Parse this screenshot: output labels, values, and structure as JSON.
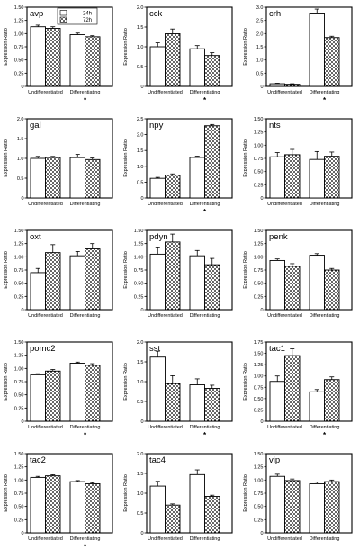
{
  "legend": {
    "series": [
      "24h",
      "72h"
    ]
  },
  "chart_data": [
    {
      "type": "bar",
      "title": "avp",
      "ylabel": "Expression Ratio",
      "categories": [
        "Undifferentiated",
        "Differentiating"
      ],
      "ylim": [
        0,
        1.5
      ],
      "yticks": [
        "0",
        "0.25",
        "0.50",
        "0.75",
        "1.00",
        "1.25",
        "1.50"
      ],
      "series": [
        {
          "name": "24h",
          "values": [
            1.13,
            0.98
          ],
          "errors": [
            0.03,
            0.03
          ]
        },
        {
          "name": "72h",
          "values": [
            1.1,
            0.94
          ],
          "errors": [
            0.03,
            0.02
          ]
        }
      ],
      "significant": "Differentiating"
    },
    {
      "type": "bar",
      "title": "cck",
      "ylabel": "Expression Ratio",
      "categories": [
        "Undifferentiated",
        "Differentiating"
      ],
      "ylim": [
        0,
        2.0
      ],
      "yticks": [
        "0",
        "0.5",
        "1.0",
        "1.5",
        "2.0"
      ],
      "series": [
        {
          "name": "24h",
          "values": [
            1.0,
            0.95
          ],
          "errors": [
            0.1,
            0.08
          ]
        },
        {
          "name": "72h",
          "values": [
            1.33,
            0.78
          ],
          "errors": [
            0.12,
            0.07
          ]
        }
      ],
      "significant": "Differentiating"
    },
    {
      "type": "bar",
      "title": "crh",
      "ylabel": "Expression Ratio",
      "categories": [
        "Undifferentiated",
        "Differentiating"
      ],
      "ylim": [
        0,
        3.0
      ],
      "yticks": [
        "0",
        "0.5",
        "1.0",
        "1.5",
        "2.0",
        "2.5",
        "3.0"
      ],
      "series": [
        {
          "name": "24h",
          "values": [
            0.1,
            2.78
          ],
          "errors": [
            0.02,
            0.15
          ]
        },
        {
          "name": "72h",
          "values": [
            0.08,
            1.85
          ],
          "errors": [
            0.02,
            0.05
          ]
        }
      ],
      "significant": "Differentiating"
    },
    {
      "type": "bar",
      "title": "gal",
      "ylabel": "Expression Ratio",
      "categories": [
        "Undifferentiated",
        "Differentiating"
      ],
      "ylim": [
        0,
        2.0
      ],
      "yticks": [
        "0",
        "0.5",
        "1.0",
        "1.5",
        "2.0"
      ],
      "series": [
        {
          "name": "24h",
          "values": [
            1.0,
            1.02
          ],
          "errors": [
            0.05,
            0.08
          ]
        },
        {
          "name": "72h",
          "values": [
            1.02,
            0.97
          ],
          "errors": [
            0.03,
            0.04
          ]
        }
      ]
    },
    {
      "type": "bar",
      "title": "npy",
      "ylabel": "Expression Ratio",
      "categories": [
        "Undifferentiated",
        "Differentiating"
      ],
      "ylim": [
        0,
        2.5
      ],
      "yticks": [
        "0",
        "0.5",
        "1.0",
        "1.5",
        "2.0",
        "2.5"
      ],
      "series": [
        {
          "name": "24h",
          "values": [
            0.62,
            1.28
          ],
          "errors": [
            0.03,
            0.04
          ]
        },
        {
          "name": "72h",
          "values": [
            0.72,
            2.28
          ],
          "errors": [
            0.04,
            0.04
          ]
        }
      ],
      "significant": "Differentiating"
    },
    {
      "type": "bar",
      "title": "nts",
      "ylabel": "Expression Ratio",
      "categories": [
        "Undifferentiated",
        "Differentiating"
      ],
      "ylim": [
        0,
        1.5
      ],
      "yticks": [
        "0",
        "0.25",
        "0.50",
        "0.75",
        "1.00",
        "1.25",
        "1.50"
      ],
      "series": [
        {
          "name": "24h",
          "values": [
            0.78,
            0.73
          ],
          "errors": [
            0.08,
            0.15
          ]
        },
        {
          "name": "72h",
          "values": [
            0.82,
            0.79
          ],
          "errors": [
            0.1,
            0.08
          ]
        }
      ]
    },
    {
      "type": "bar",
      "title": "oxt",
      "ylabel": "Expression Ratio",
      "categories": [
        "Undifferentiated",
        "Differentiating"
      ],
      "ylim": [
        0,
        1.5
      ],
      "yticks": [
        "0",
        "0.25",
        "0.50",
        "0.75",
        "1.00",
        "1.25",
        "1.50"
      ],
      "series": [
        {
          "name": "24h",
          "values": [
            0.7,
            1.02
          ],
          "errors": [
            0.08,
            0.08
          ]
        },
        {
          "name": "72h",
          "values": [
            1.08,
            1.15
          ],
          "errors": [
            0.15,
            0.1
          ]
        }
      ]
    },
    {
      "type": "bar",
      "title": "pdyn",
      "ylabel": "Expression Ratio",
      "categories": [
        "Undifferentiated",
        "Differentiating"
      ],
      "ylim": [
        0,
        1.5
      ],
      "yticks": [
        "0",
        "0.25",
        "0.50",
        "0.75",
        "1.00",
        "1.25",
        "1.50"
      ],
      "series": [
        {
          "name": "24h",
          "values": [
            1.05,
            1.02
          ],
          "errors": [
            0.12,
            0.1
          ]
        },
        {
          "name": "72h",
          "values": [
            1.28,
            0.85
          ],
          "errors": [
            0.15,
            0.12
          ]
        }
      ]
    },
    {
      "type": "bar",
      "title": "penk",
      "ylabel": "Expression Ratio",
      "categories": [
        "Undifferentiated",
        "Differentiating"
      ],
      "ylim": [
        0,
        1.5
      ],
      "yticks": [
        "0",
        "0.25",
        "0.50",
        "0.75",
        "1.00",
        "1.25",
        "1.50"
      ],
      "series": [
        {
          "name": "24h",
          "values": [
            0.93,
            1.03
          ],
          "errors": [
            0.03,
            0.03
          ]
        },
        {
          "name": "72h",
          "values": [
            0.82,
            0.75
          ],
          "errors": [
            0.05,
            0.03
          ]
        }
      ]
    },
    {
      "type": "bar",
      "title": "pomc2",
      "ylabel": "Expression Ratio",
      "categories": [
        "Undifferentiated",
        "Differentiating"
      ],
      "ylim": [
        0,
        1.5
      ],
      "yticks": [
        "0",
        "0.25",
        "0.50",
        "0.75",
        "1.00",
        "1.25",
        "1.50"
      ],
      "series": [
        {
          "name": "24h",
          "values": [
            0.88,
            1.1
          ],
          "errors": [
            0.02,
            0.02
          ]
        },
        {
          "name": "72h",
          "values": [
            0.95,
            1.06
          ],
          "errors": [
            0.03,
            0.03
          ]
        }
      ],
      "significant": "Differentiating"
    },
    {
      "type": "bar",
      "title": "sst",
      "ylabel": "Expression Ratio",
      "categories": [
        "Undifferentiated",
        "Differentiating"
      ],
      "ylim": [
        0,
        2.0
      ],
      "yticks": [
        "0",
        "0.5",
        "1.0",
        "1.5",
        "2.0"
      ],
      "series": [
        {
          "name": "24h",
          "values": [
            1.62,
            0.92
          ],
          "errors": [
            0.15,
            0.15
          ]
        },
        {
          "name": "72h",
          "values": [
            0.95,
            0.83
          ],
          "errors": [
            0.2,
            0.08
          ]
        }
      ],
      "significant": "Differentiating"
    },
    {
      "type": "bar",
      "title": "tac1",
      "ylabel": "Expression Ratio",
      "categories": [
        "Undifferentiated",
        "Differentiating"
      ],
      "ylim": [
        0,
        1.75
      ],
      "yticks": [
        "0",
        "0.25",
        "0.50",
        "0.75",
        "1.00",
        "1.25",
        "1.50",
        "1.75"
      ],
      "series": [
        {
          "name": "24h",
          "values": [
            0.88,
            0.65
          ],
          "errors": [
            0.12,
            0.05
          ]
        },
        {
          "name": "72h",
          "values": [
            1.45,
            0.92
          ],
          "errors": [
            0.15,
            0.06
          ]
        }
      ],
      "significant": "Differentiating"
    },
    {
      "type": "bar",
      "title": "tac2",
      "ylabel": "Expression Ratio",
      "categories": [
        "Undifferentiated",
        "Differentiating"
      ],
      "ylim": [
        0,
        1.5
      ],
      "yticks": [
        "0",
        "0.25",
        "0.50",
        "0.75",
        "1.00",
        "1.25",
        "1.50"
      ],
      "series": [
        {
          "name": "24h",
          "values": [
            1.05,
            0.97
          ],
          "errors": [
            0.02,
            0.02
          ]
        },
        {
          "name": "72h",
          "values": [
            1.08,
            0.93
          ],
          "errors": [
            0.02,
            0.02
          ]
        }
      ],
      "significant": "Differentiating"
    },
    {
      "type": "bar",
      "title": "tac4",
      "ylabel": "Expression Ratio",
      "categories": [
        "Undifferentiated",
        "Differentiating"
      ],
      "ylim": [
        0,
        2.0
      ],
      "yticks": [
        "0",
        "0.5",
        "1.0",
        "1.5",
        "2.0"
      ],
      "series": [
        {
          "name": "24h",
          "values": [
            1.18,
            1.47
          ],
          "errors": [
            0.12,
            0.12
          ]
        },
        {
          "name": "72h",
          "values": [
            0.7,
            0.92
          ],
          "errors": [
            0.03,
            0.03
          ]
        }
      ]
    },
    {
      "type": "bar",
      "title": "vip",
      "ylabel": "Expression Ratio",
      "categories": [
        "Undifferentiated",
        "Differentiating"
      ],
      "ylim": [
        0,
        1.5
      ],
      "yticks": [
        "0",
        "0.25",
        "0.50",
        "0.75",
        "1.00",
        "1.25",
        "1.50"
      ],
      "series": [
        {
          "name": "24h",
          "values": [
            1.07,
            0.93
          ],
          "errors": [
            0.04,
            0.03
          ]
        },
        {
          "name": "72h",
          "values": [
            0.99,
            0.97
          ],
          "errors": [
            0.03,
            0.03
          ]
        }
      ]
    }
  ]
}
